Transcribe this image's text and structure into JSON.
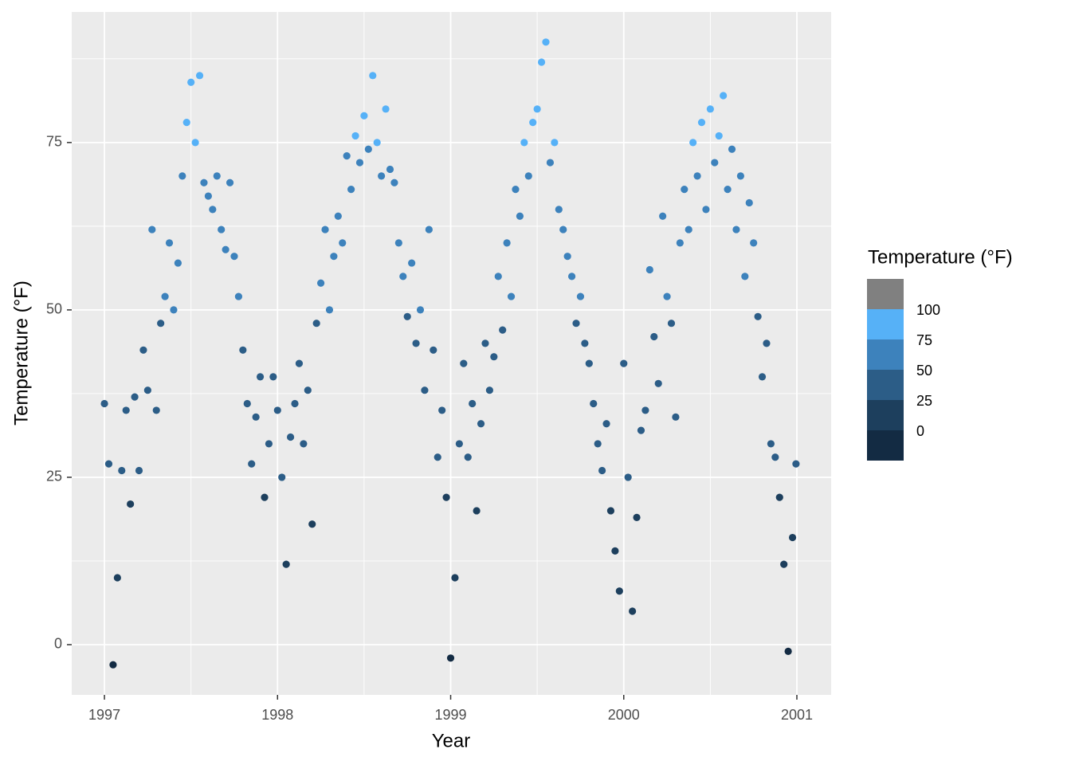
{
  "chart_data": {
    "type": "scatter",
    "x_label": "Year",
    "y_label": "Temperature (°F)",
    "xlim": [
      1996.811,
      2001.198
    ],
    "ylim": [
      -7.5,
      94.5
    ],
    "xticks": [
      1997,
      1998,
      1999,
      2000,
      2001
    ],
    "yticks": [
      0,
      25,
      50,
      75
    ],
    "minor_xticks": [
      1997.5,
      1998.5,
      1999.5,
      2000.5
    ],
    "minor_yticks": [
      12.5,
      37.5,
      62.5,
      87.5
    ],
    "grid": true,
    "legend": {
      "title": "Temperature (°F)",
      "position": "right",
      "breaks": [
        0,
        25,
        50,
        75,
        100
      ],
      "colors": [
        "#132b43",
        "#1d3f5d",
        "#2c5d87",
        "#3d82bc",
        "#56b1f7",
        "#808080"
      ]
    },
    "x": [
      1997.0,
      1997.025,
      1997.05,
      1997.075,
      1997.1,
      1997.125,
      1997.15,
      1997.175,
      1997.2,
      1997.225,
      1997.25,
      1997.275,
      1997.3,
      1997.325,
      1997.35,
      1997.375,
      1997.4,
      1997.425,
      1997.45,
      1997.475,
      1997.5,
      1997.525,
      1997.55,
      1997.575,
      1997.6,
      1997.625,
      1997.65,
      1997.675,
      1997.7,
      1997.725,
      1997.75,
      1997.775,
      1997.8,
      1997.825,
      1997.85,
      1997.875,
      1997.9,
      1997.925,
      1997.95,
      1997.975,
      1998.0,
      1998.025,
      1998.05,
      1998.075,
      1998.1,
      1998.125,
      1998.15,
      1998.175,
      1998.2,
      1998.225,
      1998.25,
      1998.275,
      1998.3,
      1998.325,
      1998.35,
      1998.375,
      1998.4,
      1998.425,
      1998.45,
      1998.475,
      1998.5,
      1998.525,
      1998.55,
      1998.575,
      1998.6,
      1998.625,
      1998.65,
      1998.675,
      1998.7,
      1998.725,
      1998.75,
      1998.775,
      1998.8,
      1998.825,
      1998.85,
      1998.875,
      1998.9,
      1998.925,
      1998.95,
      1998.975,
      1999.0,
      1999.025,
      1999.05,
      1999.075,
      1999.1,
      1999.125,
      1999.15,
      1999.175,
      1999.2,
      1999.225,
      1999.25,
      1999.275,
      1999.3,
      1999.325,
      1999.35,
      1999.375,
      1999.4,
      1999.425,
      1999.45,
      1999.475,
      1999.5,
      1999.525,
      1999.55,
      1999.575,
      1999.6,
      1999.625,
      1999.65,
      1999.675,
      1999.7,
      1999.725,
      1999.75,
      1999.775,
      1999.8,
      1999.825,
      1999.85,
      1999.875,
      1999.9,
      1999.925,
      1999.95,
      1999.975,
      2000.0,
      2000.025,
      2000.05,
      2000.075,
      2000.1,
      2000.125,
      2000.15,
      2000.175,
      2000.2,
      2000.225,
      2000.25,
      2000.275,
      2000.3,
      2000.325,
      2000.35,
      2000.375,
      2000.4,
      2000.425,
      2000.45,
      2000.475,
      2000.5,
      2000.525,
      2000.55,
      2000.575,
      2000.6,
      2000.625,
      2000.65,
      2000.675,
      2000.7,
      2000.725,
      2000.75,
      2000.775,
      2000.8,
      2000.825,
      2000.85,
      2000.875,
      2000.9,
      2000.925,
      2000.95,
      2000.975,
      2000.995
    ],
    "values": [
      36,
      27,
      -3,
      10,
      26,
      35,
      21,
      37,
      26,
      44,
      38,
      62,
      35,
      48,
      52,
      60,
      50,
      57,
      70,
      78,
      84,
      75,
      85,
      69,
      67,
      65,
      70,
      62,
      59,
      69,
      58,
      52,
      44,
      36,
      27,
      34,
      40,
      22,
      30,
      40,
      35,
      25,
      12,
      31,
      36,
      42,
      30,
      38,
      18,
      48,
      54,
      62,
      50,
      58,
      64,
      60,
      73,
      68,
      76,
      72,
      79,
      74,
      85,
      75,
      70,
      80,
      71,
      69,
      60,
      55,
      49,
      57,
      45,
      50,
      38,
      62,
      44,
      28,
      35,
      22,
      -2,
      10,
      30,
      42,
      28,
      36,
      20,
      33,
      45,
      38,
      43,
      55,
      47,
      60,
      52,
      68,
      64,
      75,
      70,
      78,
      80,
      87,
      90,
      72,
      75,
      65,
      62,
      58,
      55,
      48,
      52,
      45,
      42,
      36,
      30,
      26,
      33,
      20,
      14,
      8,
      42,
      25,
      5,
      19,
      32,
      35,
      56,
      46,
      39,
      64,
      52,
      48,
      34,
      60,
      68,
      62,
      75,
      70,
      78,
      65,
      80,
      72,
      76,
      82,
      68,
      74,
      62,
      70,
      55,
      66,
      60,
      49,
      40,
      45,
      30,
      28,
      22,
      12,
      -1,
      16,
      27
    ]
  }
}
